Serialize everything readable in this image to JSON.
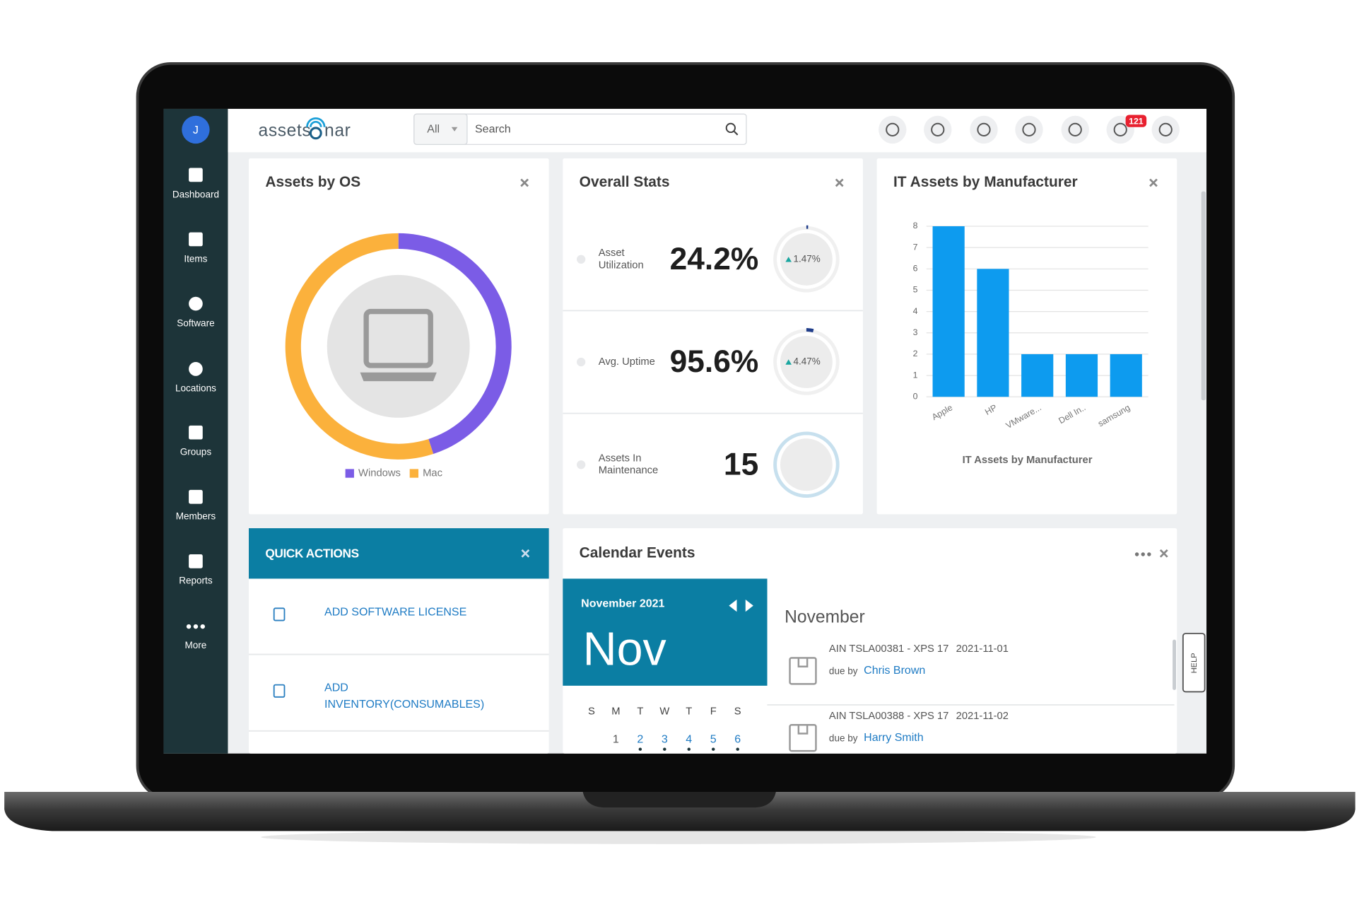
{
  "sidebar": {
    "avatar": "J",
    "nav": [
      "Dashboard",
      "Items",
      "Software",
      "Locations",
      "Groups",
      "Members",
      "Reports",
      "More"
    ]
  },
  "header": {
    "logo_left": "assets",
    "logo_right": "nar",
    "filter": "All",
    "search": "Search",
    "notifications": "121"
  },
  "assets_by_os": {
    "title": "Assets by OS"
  },
  "overall_stats": {
    "title": "Overall Stats",
    "rows": [
      {
        "label": [
          "Asset",
          "Utilization"
        ],
        "value": "24.2%",
        "change": "1.47%"
      },
      {
        "label": [
          "Avg. Uptime"
        ],
        "value": "95.6%",
        "change": "4.47%"
      },
      {
        "label": [
          "Assets In",
          "Maintenance"
        ],
        "value": "15"
      }
    ]
  },
  "it_assets": {
    "title": "IT Assets by Manufacturer"
  },
  "quick_actions": {
    "title": "QUICK ACTIONS",
    "items": [
      [
        "ADD SOFTWARE LICENSE"
      ],
      [
        "ADD",
        "INVENTORY(CONSUMABLES)"
      ]
    ]
  },
  "calendar": {
    "title": "Calendar Events",
    "month_year": "November 2021",
    "month_short": "Nov",
    "weekdays": [
      "S",
      "M",
      "T",
      "W",
      "T",
      "F",
      "S"
    ],
    "days": [
      1,
      2,
      3,
      4,
      5,
      6
    ],
    "list_month": "November",
    "events": [
      {
        "asset": "AIN TSLA00381 - XPS 17",
        "date": "2021-11-01",
        "due": "due by",
        "person": "Chris Brown"
      },
      {
        "asset": "AIN TSLA00388 - XPS 17",
        "date": "2021-11-02",
        "due": "due by",
        "person": "Harry Smith"
      }
    ]
  },
  "help": "HELP",
  "chart_data": [
    {
      "type": "pie",
      "categories": [
        "Windows",
        "Mac"
      ],
      "values": [
        45,
        55
      ],
      "colors": [
        "#7b5ce6",
        "#fbb13c"
      ]
    },
    {
      "type": "bar",
      "title": "IT Assets by Manufacturer",
      "categories": [
        "Apple",
        "HP",
        "VMware...",
        "Dell In..",
        "samsung"
      ],
      "values": [
        8,
        6,
        2,
        2,
        2
      ],
      "color": "#0d9bef",
      "ylim": [
        0,
        8
      ],
      "yticks": [
        0,
        1,
        2,
        3,
        4,
        5,
        6,
        7,
        8
      ],
      "grid": true
    }
  ]
}
